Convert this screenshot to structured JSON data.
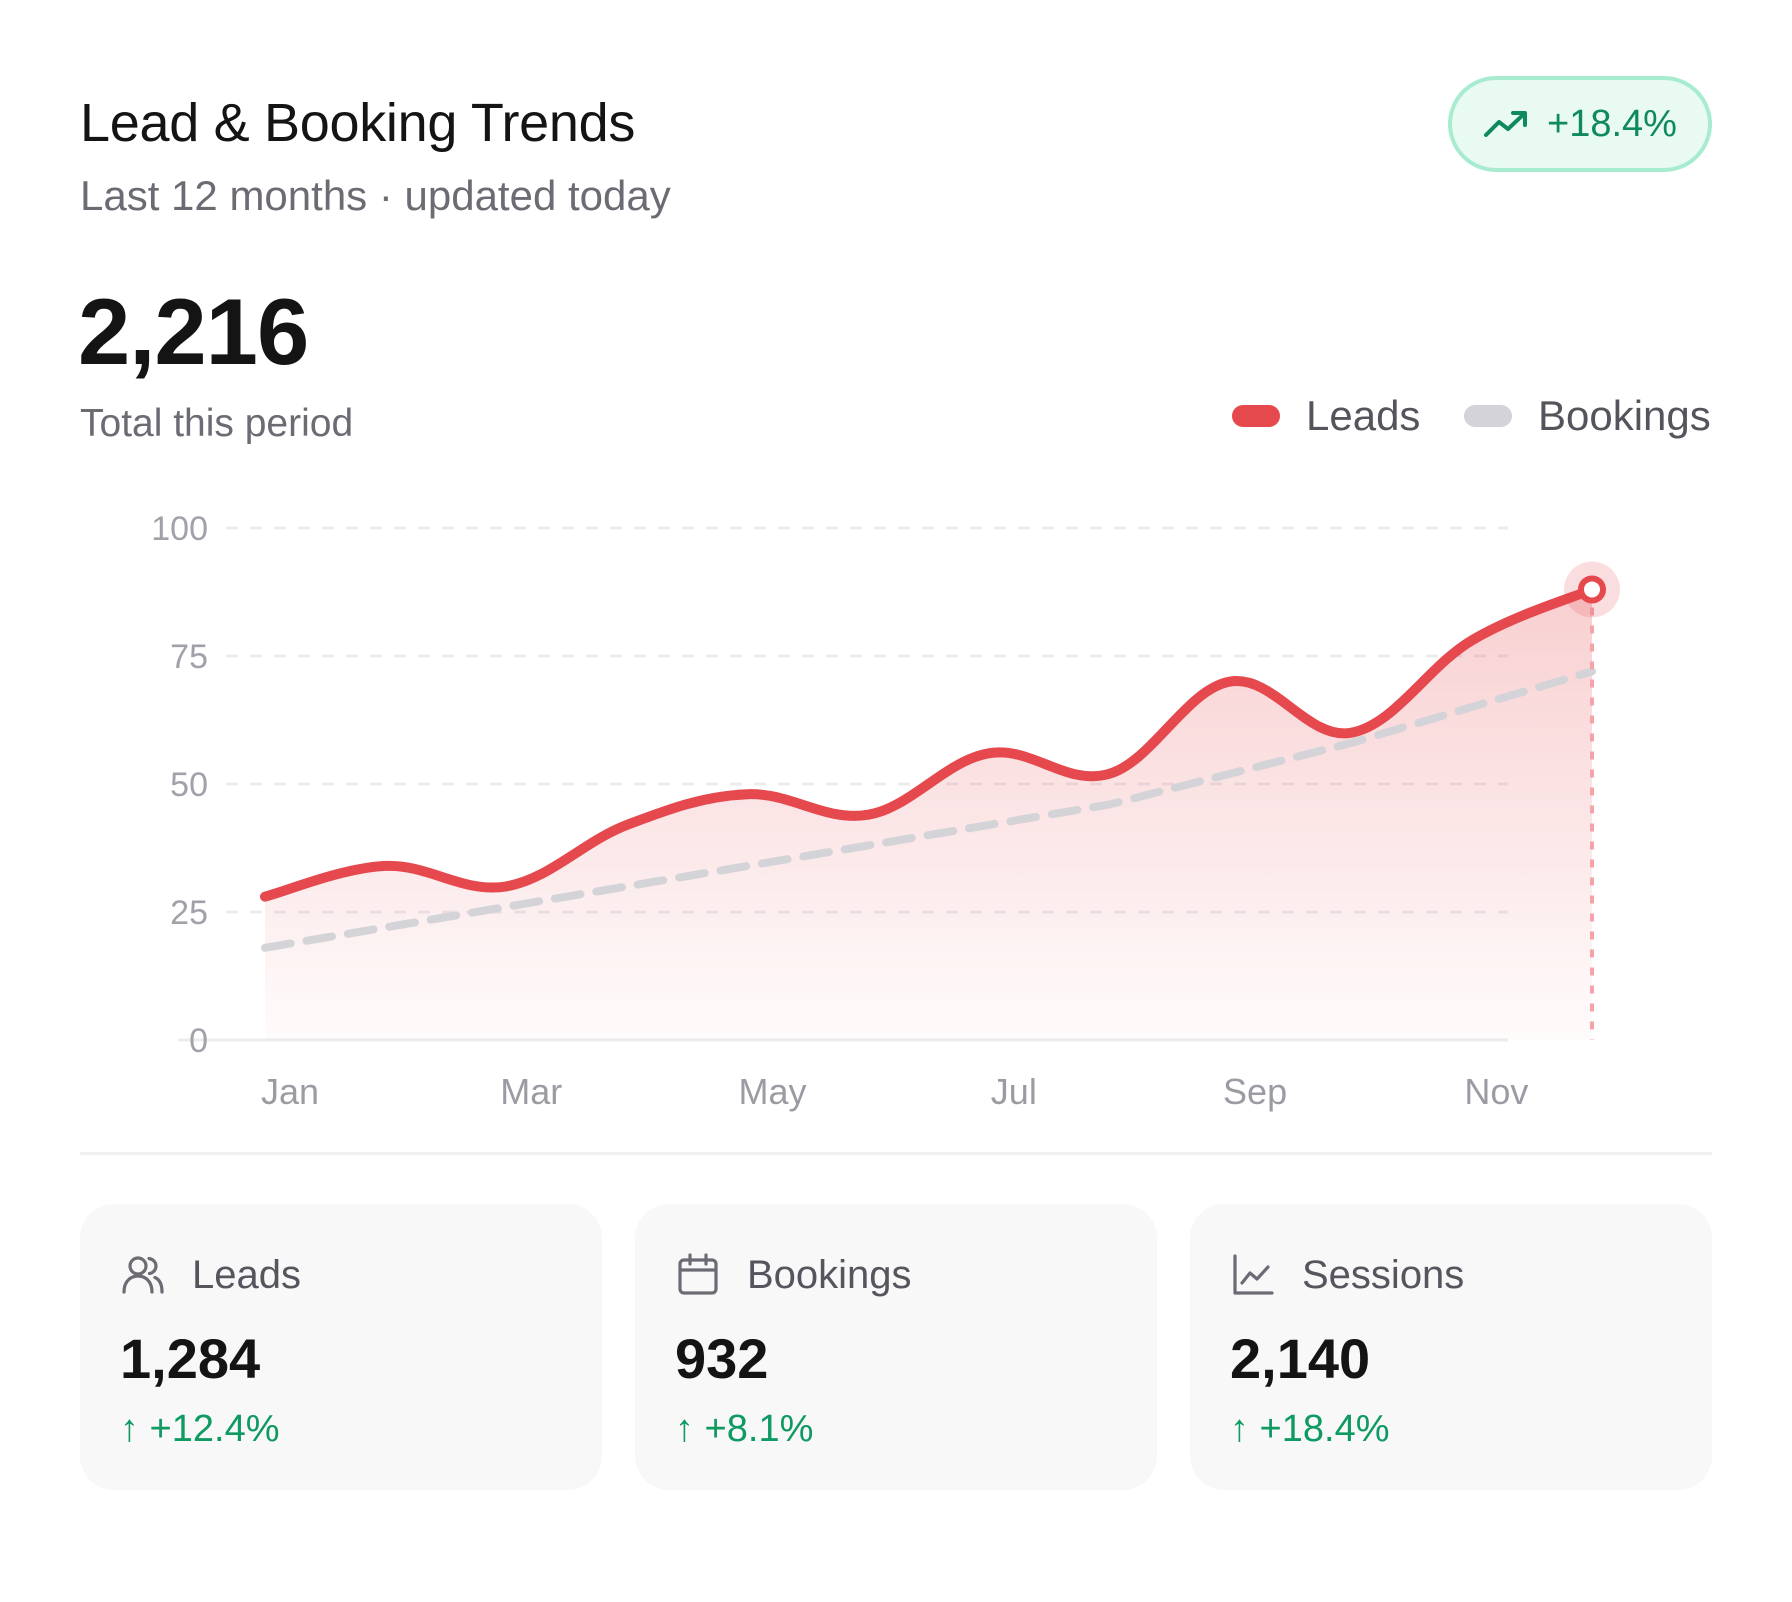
{
  "header": {
    "title": "Lead & Booking Trends",
    "subtitle": "Last 12 months · updated today",
    "badge": {
      "icon": "trending-up-icon",
      "text": "+18.4%",
      "color": "#0f8a5c"
    }
  },
  "summary": {
    "total": "2,216",
    "caption": "Total this period"
  },
  "legend": [
    {
      "label": "Leads",
      "color": "#e5484d"
    },
    {
      "label": "Bookings",
      "color": "#d4d4d8"
    }
  ],
  "chart_data": {
    "type": "line",
    "x": [
      "Jan",
      "Feb",
      "Mar",
      "Apr",
      "May",
      "Jun",
      "Jul",
      "Aug",
      "Sep",
      "Oct",
      "Nov",
      "Dec"
    ],
    "x_tick_labels": [
      "Jan",
      "Mar",
      "May",
      "Jul",
      "Sep",
      "Nov"
    ],
    "y_ticks": [
      0,
      25,
      50,
      75,
      100
    ],
    "ylim": [
      0,
      100
    ],
    "grid": true,
    "legend_position": "top-right",
    "series": [
      {
        "name": "Leads",
        "style": "solid-area",
        "color": "#e5484d",
        "values": [
          28,
          34,
          30,
          42,
          48,
          44,
          56,
          52,
          70,
          60,
          78,
          88
        ]
      },
      {
        "name": "Bookings",
        "style": "dashed",
        "color": "#d4d4d8",
        "values": [
          18,
          22,
          26,
          30,
          34,
          38,
          42,
          46,
          52,
          58,
          65,
          72
        ]
      }
    ]
  },
  "stats": [
    {
      "icon": "users-icon",
      "label": "Leads",
      "value": "1,284",
      "change": "↑ +12.4%"
    },
    {
      "icon": "calendar-icon",
      "label": "Bookings",
      "value": "932",
      "change": "↑ +8.1%"
    },
    {
      "icon": "line-chart-icon",
      "label": "Sessions",
      "value": "2,140",
      "change": "↑ +18.4%"
    }
  ]
}
